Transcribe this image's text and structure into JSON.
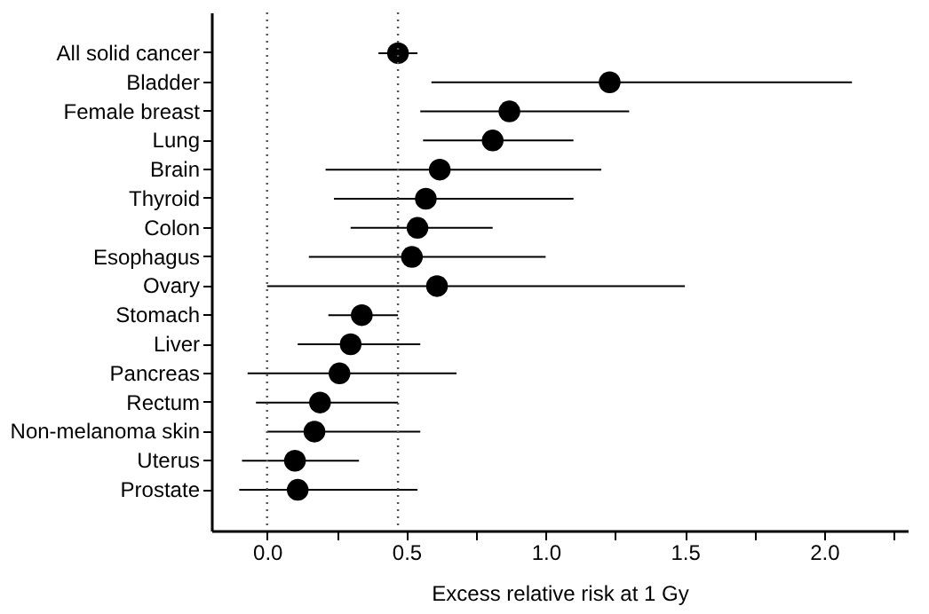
{
  "chart_data": {
    "type": "scatter",
    "orientation": "horizontal",
    "xlabel": "Excess relative risk at 1 Gy",
    "categories": [
      "All solid cancer",
      "Bladder",
      "Female breast",
      "Lung",
      "Brain",
      "Thyroid",
      "Colon",
      "Esophagus",
      "Ovary",
      "Stomach",
      "Liver",
      "Pancreas",
      "Rectum",
      "Non-melanoma skin",
      "Uterus",
      "Prostate"
    ],
    "series": [
      {
        "color": "#000000",
        "values": [
          0.47,
          1.23,
          0.87,
          0.81,
          0.62,
          0.57,
          0.54,
          0.52,
          0.61,
          0.34,
          0.3,
          0.26,
          0.19,
          0.17,
          0.1,
          0.11
        ],
        "errors": [
          [
            0.4,
            0.54
          ],
          [
            0.59,
            2.1
          ],
          [
            0.55,
            1.3
          ],
          [
            0.56,
            1.1
          ],
          [
            0.21,
            1.2
          ],
          [
            0.24,
            1.1
          ],
          [
            0.3,
            0.81
          ],
          [
            0.15,
            1.0
          ],
          [
            0.0,
            1.5
          ],
          [
            0.22,
            0.47
          ],
          [
            0.11,
            0.55
          ],
          [
            -0.07,
            0.68
          ],
          [
            -0.04,
            0.47
          ],
          [
            0.0,
            0.55
          ],
          [
            -0.09,
            0.33
          ],
          [
            -0.1,
            0.54
          ]
        ]
      }
    ],
    "xlim": [
      -0.2,
      2.3
    ],
    "xticks": [
      {
        "value": 0,
        "label": "0.0"
      },
      {
        "value": 0.25,
        "label": null
      },
      {
        "value": 0.5,
        "label": "0.5"
      },
      {
        "value": 0.75,
        "label": null
      },
      {
        "value": 1,
        "label": "1.0"
      },
      {
        "value": 1.25,
        "label": null
      },
      {
        "value": 1.5,
        "label": "1.5"
      },
      {
        "value": 1.75,
        "label": null
      },
      {
        "value": 2,
        "label": "2.0"
      },
      {
        "value": 2.25,
        "label": null
      }
    ],
    "ref_lines": [
      {
        "axis": "x",
        "value": 0,
        "color": "#555555",
        "line_style": "dotted"
      },
      {
        "axis": "x",
        "value": 0.47,
        "color": "#555555",
        "line_style": "dotted"
      }
    ],
    "marker": "circle",
    "grid": false
  }
}
